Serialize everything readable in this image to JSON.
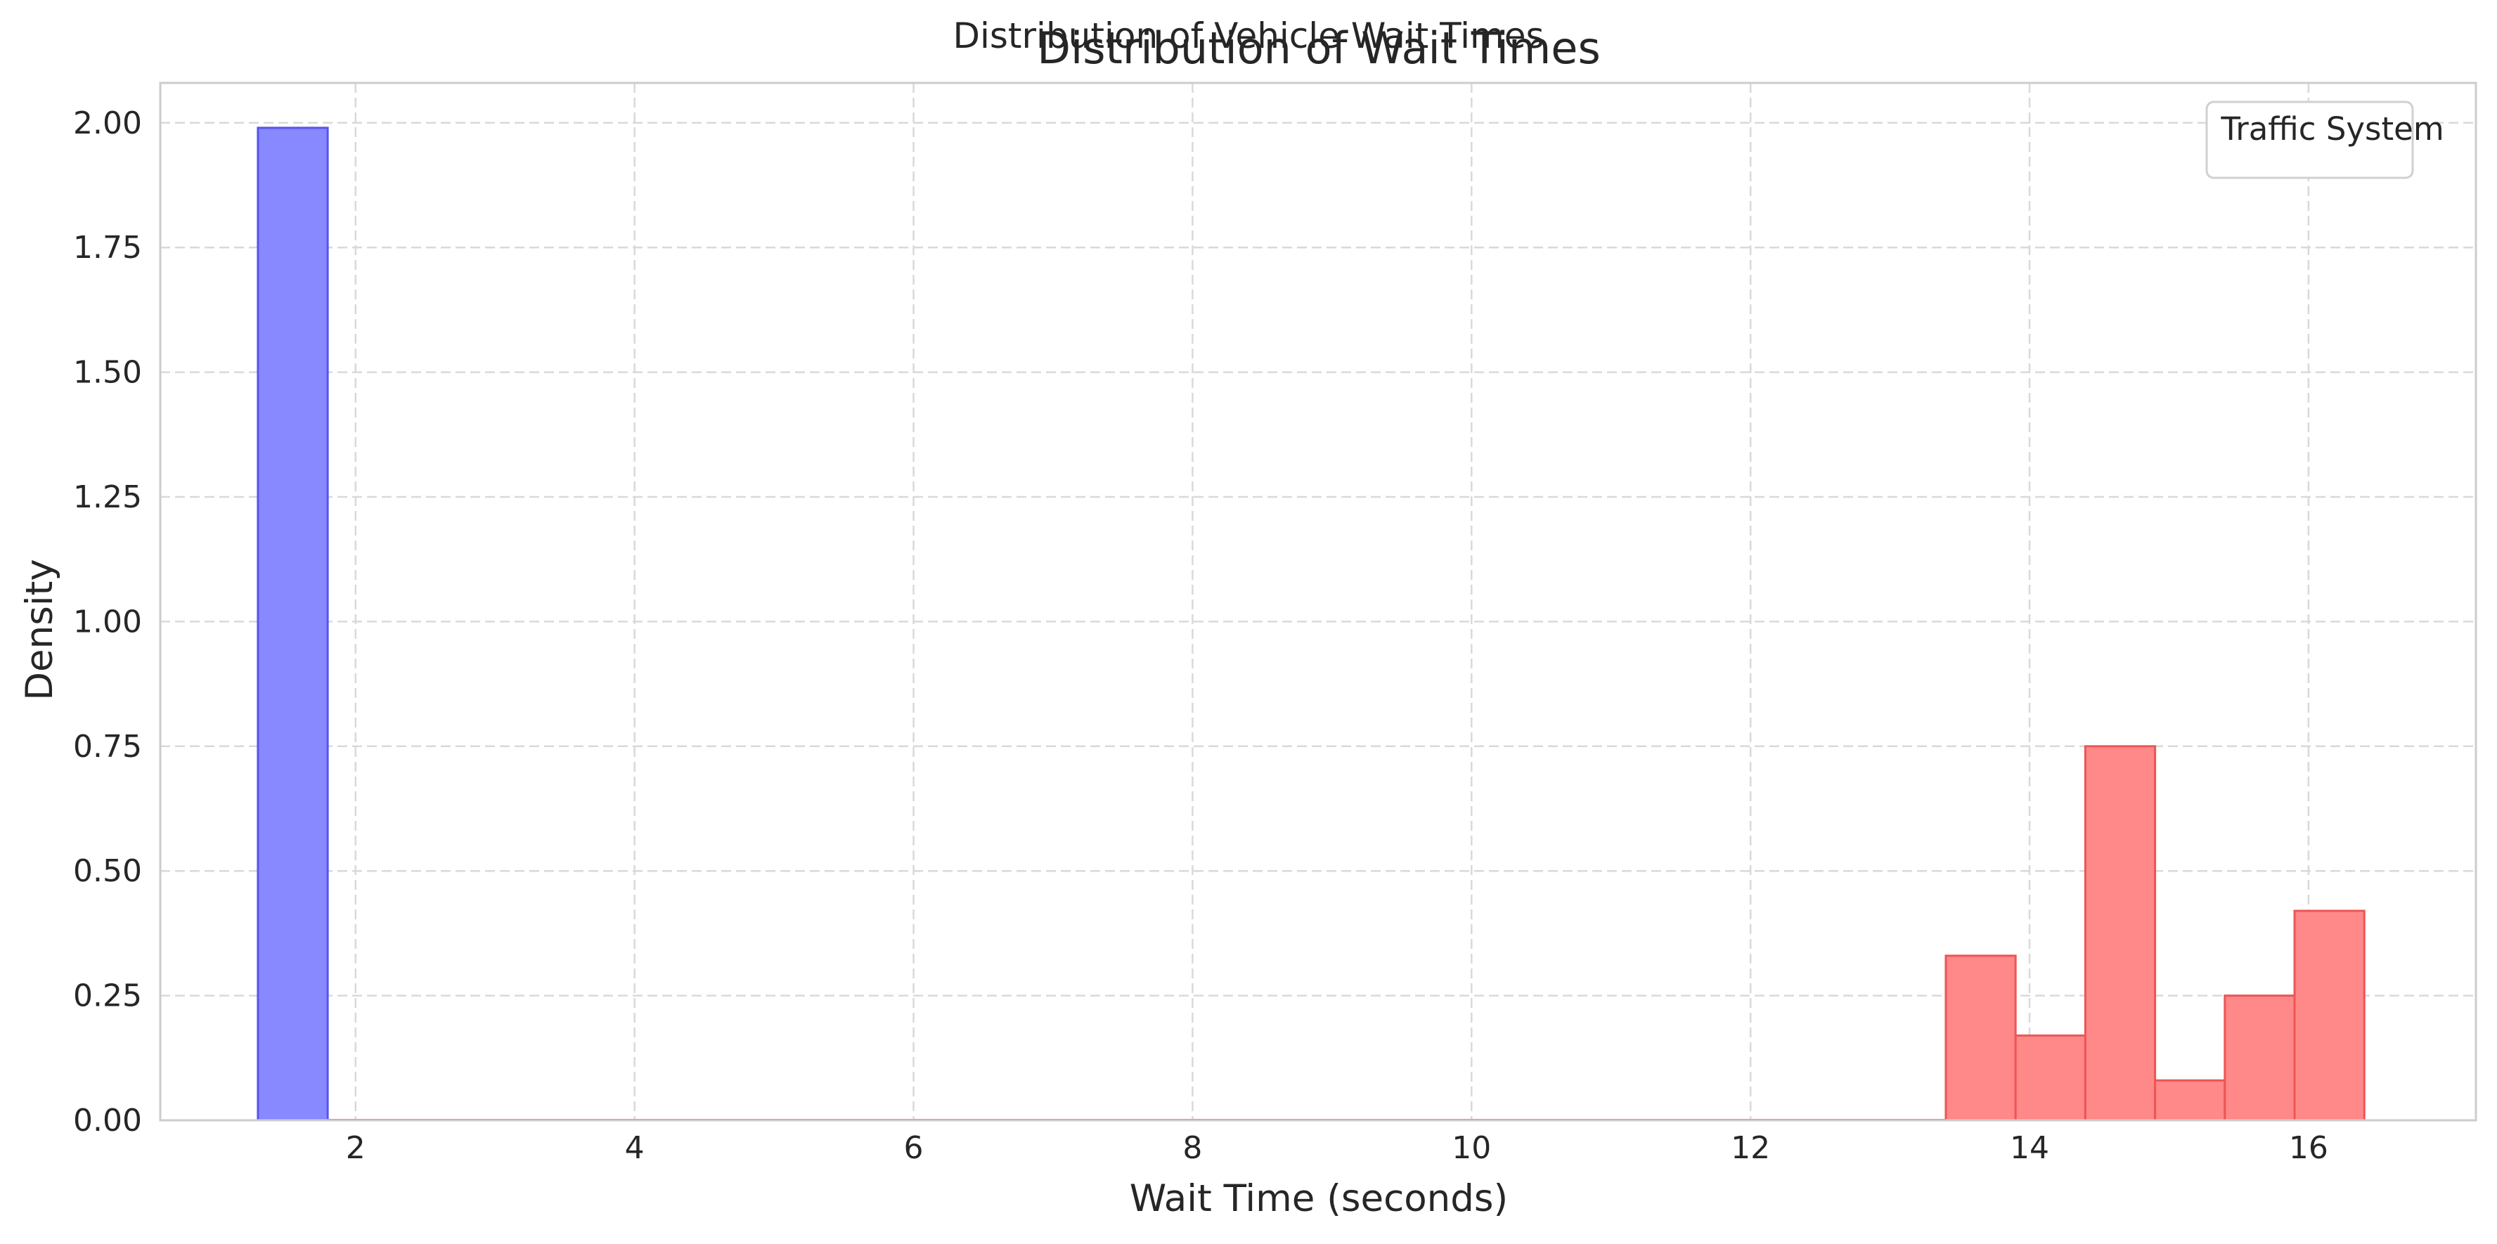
{
  "colors": {
    "background": "#ffffff",
    "grid": "#d9d9d9",
    "axes_edge": "#cccccc",
    "series_blue_fill": "#8888ff",
    "series_blue_edge": "#5555ee",
    "series_red_fill": "#ff8888",
    "series_red_edge": "#ee5555",
    "text": "#262626"
  },
  "chart_data": {
    "type": "bar",
    "suptitle": "Distribution of Vehicle Wait Times",
    "title": "Distribution of Wait Times",
    "xlabel": "Wait Time (seconds)",
    "ylabel": "Density",
    "xlim": [
      0.6,
      17.2
    ],
    "ylim": [
      0,
      2.08
    ],
    "xticks": [
      2,
      4,
      6,
      8,
      10,
      12,
      14,
      16
    ],
    "xtick_labels": [
      "2",
      "4",
      "6",
      "8",
      "10",
      "12",
      "14",
      "16"
    ],
    "yticks": [
      0,
      0.25,
      0.5,
      0.75,
      1.0,
      1.25,
      1.5,
      1.75,
      2.0
    ],
    "ytick_labels": [
      "0.00",
      "0.25",
      "0.50",
      "0.75",
      "1.00",
      "1.25",
      "1.50",
      "1.75",
      "2.00"
    ],
    "grid": true,
    "legend": {
      "title": "Traffic System",
      "placement": "top-right",
      "entries": []
    },
    "series": [
      {
        "color": "#8888ff",
        "bins": [
          {
            "x0": 1.3,
            "x1": 1.8,
            "density": 1.99
          }
        ]
      },
      {
        "color": "#ff8888",
        "bins": [
          {
            "x0": 1.8,
            "x1": 13.4,
            "density": 0.0
          },
          {
            "x0": 13.4,
            "x1": 13.9,
            "density": 0.33
          },
          {
            "x0": 13.9,
            "x1": 14.4,
            "density": 0.17
          },
          {
            "x0": 14.4,
            "x1": 14.9,
            "density": 0.75
          },
          {
            "x0": 14.9,
            "x1": 15.4,
            "density": 0.08
          },
          {
            "x0": 15.4,
            "x1": 15.9,
            "density": 0.25
          },
          {
            "x0": 15.9,
            "x1": 16.4,
            "density": 0.42
          }
        ]
      }
    ]
  }
}
